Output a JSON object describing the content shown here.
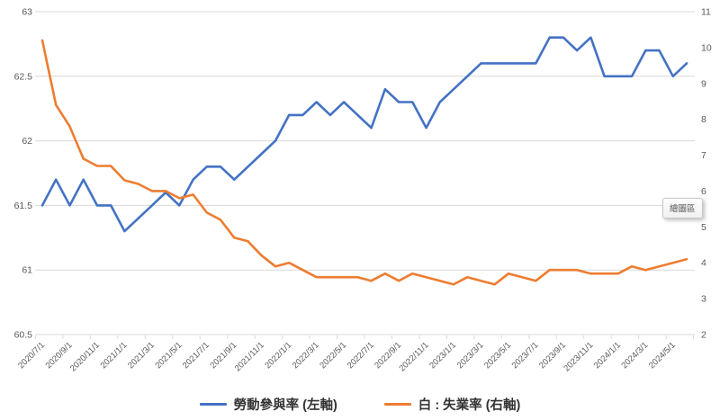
{
  "tooltip": {
    "plot_area_label": "繪圖區"
  },
  "legend": [
    {
      "label": "勞動參與率 (左軸)",
      "color": "#4472C4"
    },
    {
      "label": "白 : 失業率 (右軸)",
      "color": "#ED7D31"
    }
  ],
  "colors": {
    "series_blue": "#4472C4",
    "series_orange": "#ED7D31",
    "gridline": "#D9D9D9",
    "axis_text": "#595959",
    "background": "#FFFFFF"
  },
  "chart_data": {
    "type": "line",
    "x": [
      "2020/7/1",
      "2020/8/1",
      "2020/9/1",
      "2020/10/1",
      "2020/11/1",
      "2020/12/1",
      "2021/1/1",
      "2021/2/1",
      "2021/3/1",
      "2021/4/1",
      "2021/5/1",
      "2021/6/1",
      "2021/7/1",
      "2021/8/1",
      "2021/9/1",
      "2021/10/1",
      "2021/11/1",
      "2021/12/1",
      "2022/1/1",
      "2022/2/1",
      "2022/3/1",
      "2022/4/1",
      "2022/5/1",
      "2022/6/1",
      "2022/7/1",
      "2022/8/1",
      "2022/9/1",
      "2022/10/1",
      "2022/11/1",
      "2022/12/1",
      "2023/1/1",
      "2023/2/1",
      "2023/3/1",
      "2023/4/1",
      "2023/5/1",
      "2023/6/1",
      "2023/7/1",
      "2023/8/1",
      "2023/9/1",
      "2023/10/1",
      "2023/11/1",
      "2023/12/1",
      "2024/1/1",
      "2024/2/1",
      "2024/3/1",
      "2024/4/1",
      "2024/5/1",
      "2024/6/1"
    ],
    "x_tick_interval": 2,
    "x_tick_labels": [
      "2020/7/1",
      "2020/9/1",
      "2020/11/1",
      "2021/1/1",
      "2021/3/1",
      "2021/5/1",
      "2021/7/1",
      "2021/9/1",
      "2021/11/1",
      "2022/1/1",
      "2022/3/1",
      "2022/5/1",
      "2022/7/1",
      "2022/9/1",
      "2022/11/1",
      "2023/1/1",
      "2023/3/1",
      "2023/5/1",
      "2023/7/1",
      "2023/9/1",
      "2023/11/1",
      "2024/1/1",
      "2024/3/1",
      "2024/5/1"
    ],
    "series": [
      {
        "name": "勞動參與率 (左軸)",
        "axis": "left",
        "color": "#4472C4",
        "values": [
          61.5,
          61.7,
          61.5,
          61.7,
          61.5,
          61.5,
          61.3,
          61.4,
          61.5,
          61.6,
          61.5,
          61.7,
          61.8,
          61.8,
          61.7,
          61.8,
          61.9,
          62.0,
          62.2,
          62.2,
          62.3,
          62.2,
          62.3,
          62.2,
          62.1,
          62.4,
          62.3,
          62.3,
          62.1,
          62.3,
          62.4,
          62.5,
          62.6,
          62.6,
          62.6,
          62.6,
          62.6,
          62.8,
          62.8,
          62.7,
          62.8,
          62.5,
          62.5,
          62.5,
          62.7,
          62.7,
          62.5,
          62.6
        ]
      },
      {
        "name": "白 : 失業率 (右軸)",
        "axis": "right",
        "color": "#ED7D31",
        "values": [
          10.2,
          8.4,
          7.8,
          6.9,
          6.7,
          6.7,
          6.3,
          6.2,
          6.0,
          6.0,
          5.8,
          5.9,
          5.4,
          5.2,
          4.7,
          4.6,
          4.2,
          3.9,
          4.0,
          3.8,
          3.6,
          3.6,
          3.6,
          3.6,
          3.5,
          3.7,
          3.5,
          3.7,
          3.6,
          3.5,
          3.4,
          3.6,
          3.5,
          3.4,
          3.7,
          3.6,
          3.5,
          3.8,
          3.8,
          3.8,
          3.7,
          3.7,
          3.7,
          3.9,
          3.8,
          3.9,
          4.0,
          4.1
        ]
      }
    ],
    "left_axis": {
      "min": 60.5,
      "max": 63,
      "ticks": [
        63,
        62.5,
        62,
        61.5,
        61,
        60.5
      ]
    },
    "right_axis": {
      "min": 2,
      "max": 11,
      "ticks": [
        11,
        10,
        9,
        8,
        7,
        6,
        5,
        4,
        3,
        2
      ]
    },
    "grid": true,
    "legend_position": "bottom",
    "title": "",
    "xlabel": "",
    "ylabel": ""
  }
}
